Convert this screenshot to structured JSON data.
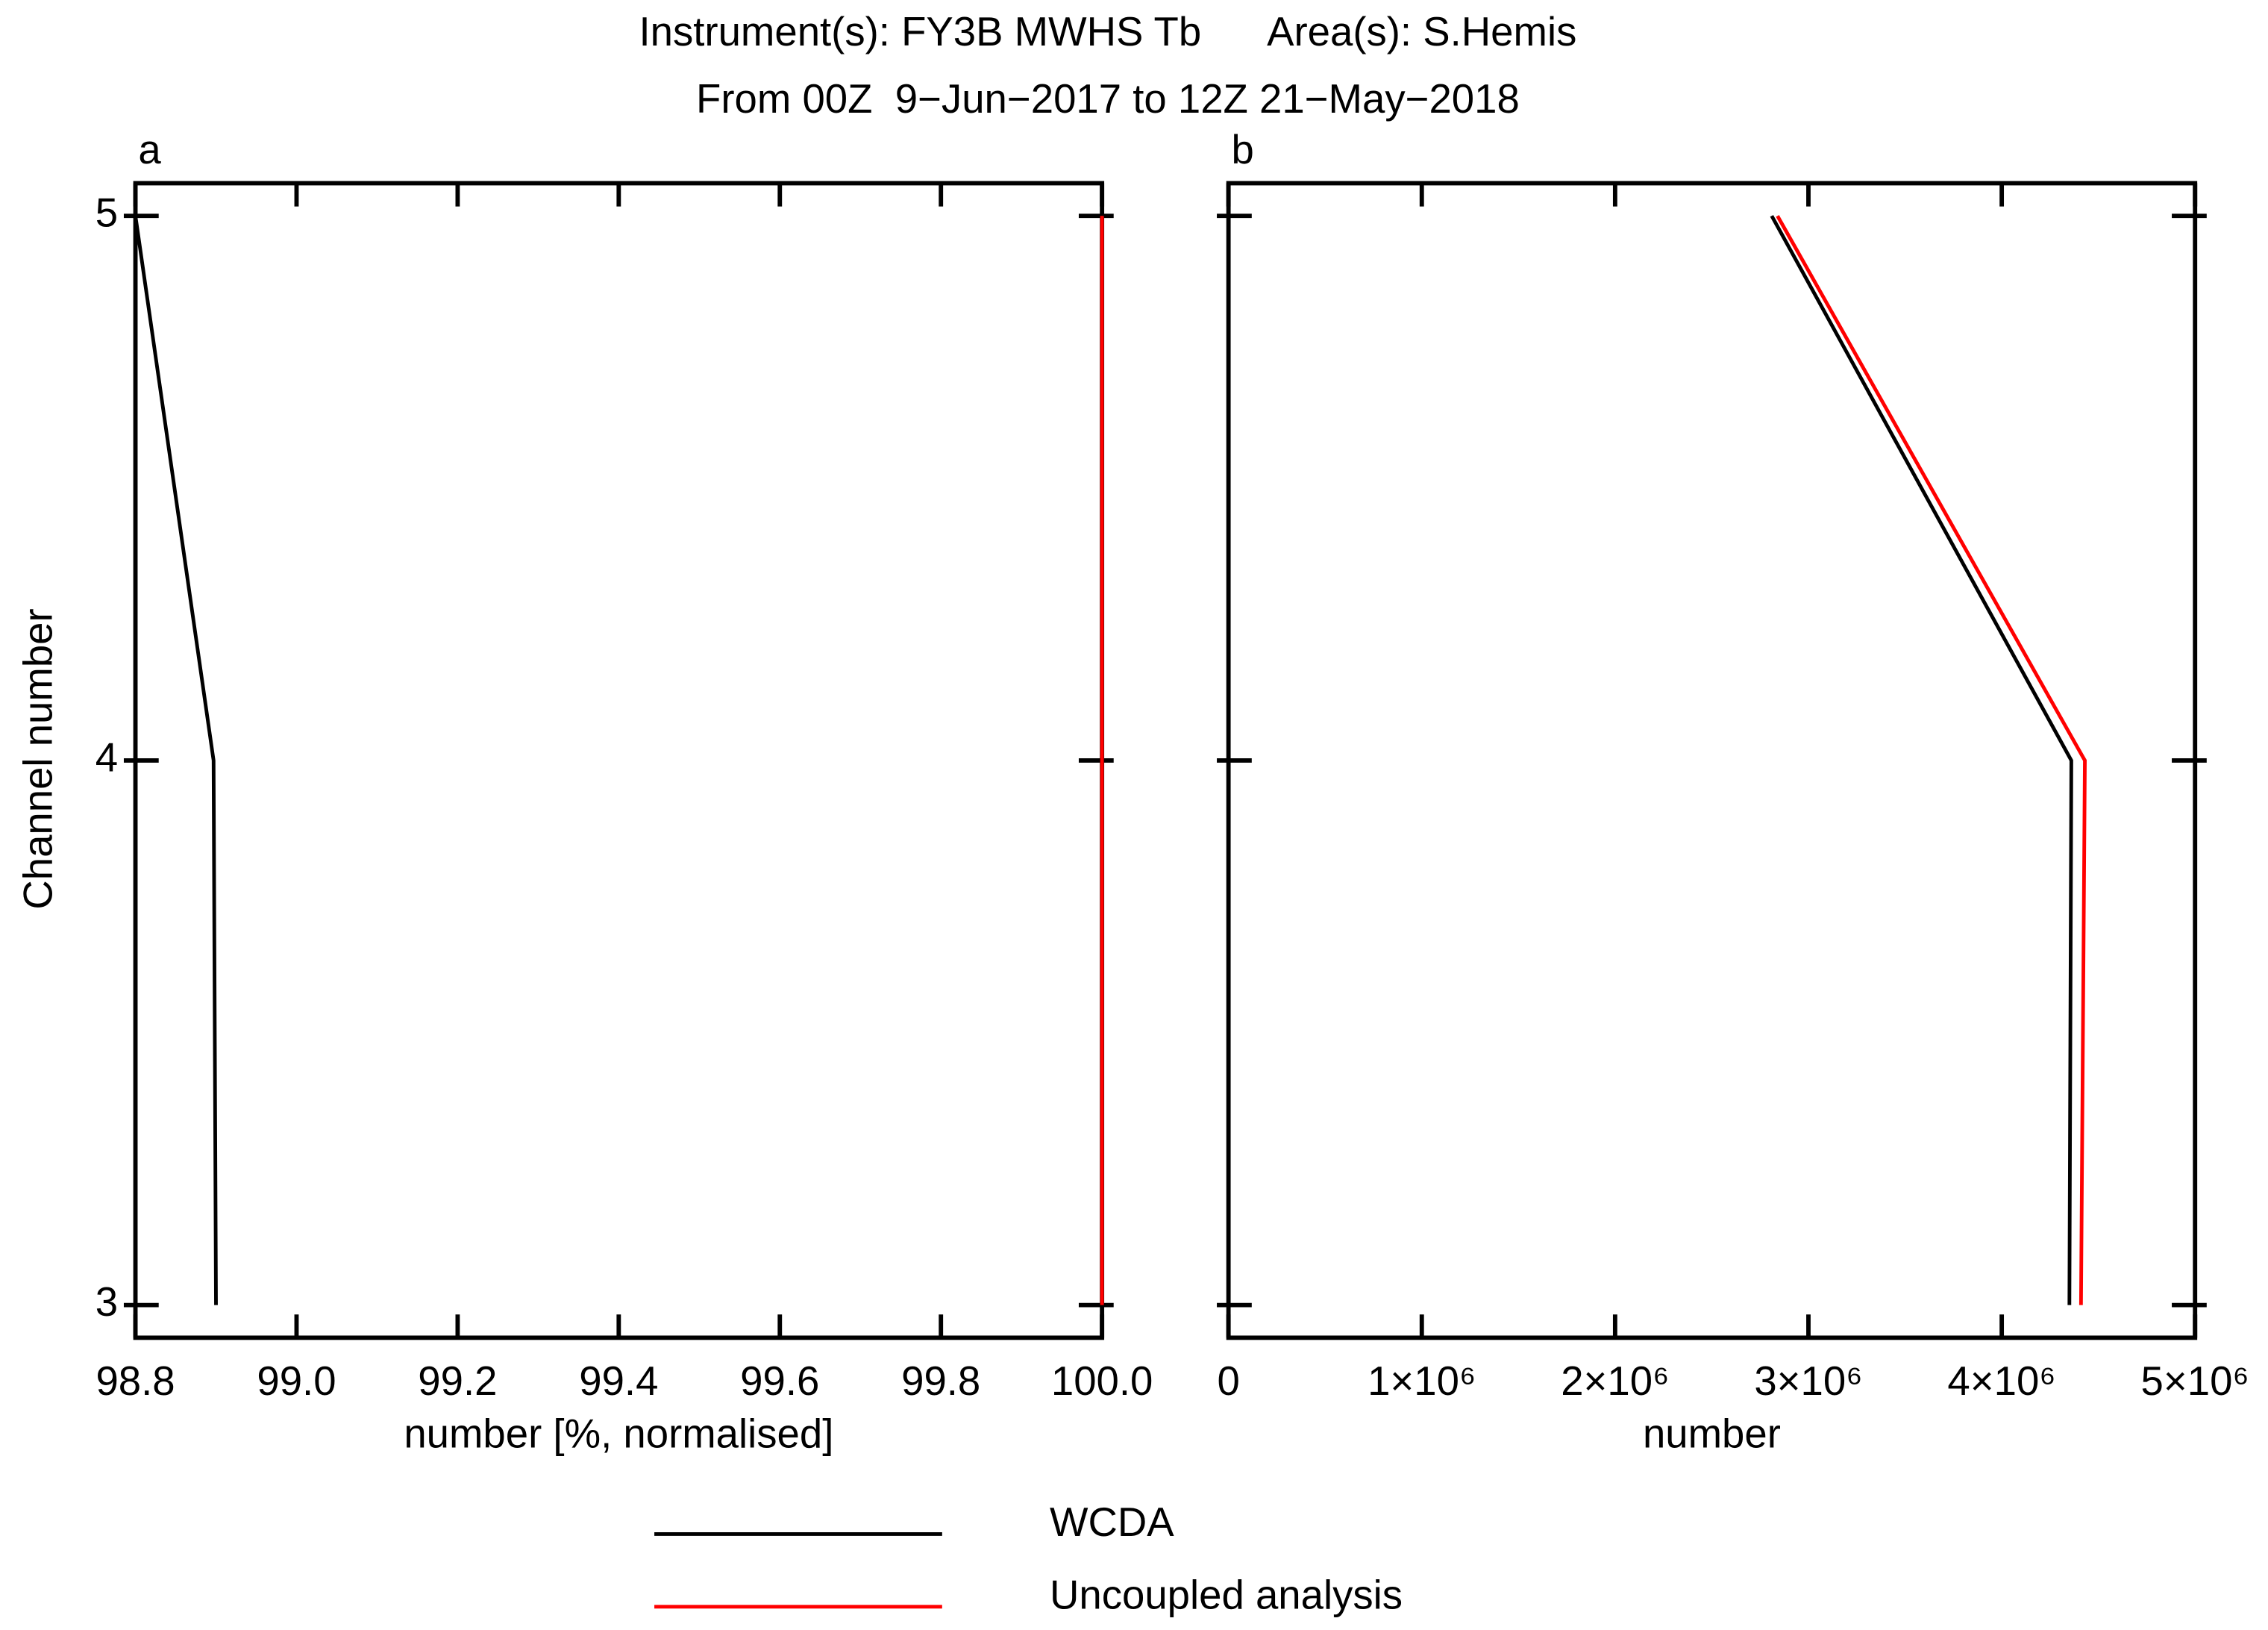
{
  "title": "Instrument(s): FY3B MWHS Tb      Area(s): S.Hemis",
  "subtitle": "From 00Z  9−Jun−2017 to 12Z 21−May−2018",
  "chart_data": [
    {
      "type": "line",
      "panel": "a",
      "xlabel": "number [%, normalised]",
      "ylabel": "Channel number",
      "y": [
        3,
        4,
        5
      ],
      "xlim": [
        98.8,
        100
      ],
      "xticks": [
        98.8,
        {
          "value": 99,
          "label": "99.0"
        },
        99.2,
        99.4,
        99.6,
        99.8,
        {
          "value": 100,
          "label": "100.0"
        }
      ],
      "ylim": [
        2.94,
        5.06
      ],
      "yticks": [
        3,
        4,
        5
      ],
      "series": [
        {
          "name": "WCDA",
          "color": "#000000",
          "values": [
            98.9,
            98.897,
            98.8
          ]
        },
        {
          "name": "Uncoupled analysis",
          "color": "#ff0000",
          "values": [
            100,
            100,
            100
          ]
        }
      ]
    },
    {
      "type": "line",
      "panel": "b",
      "xlabel": "number",
      "y": [
        3,
        4,
        5
      ],
      "xlim": [
        0,
        5000000
      ],
      "xticks": [
        0,
        {
          "value": 1000000,
          "label": "1×10⁶"
        },
        {
          "value": 2000000,
          "label": "2×10⁶"
        },
        {
          "value": 3000000,
          "label": "3×10⁶"
        },
        {
          "value": 4000000,
          "label": "4×10⁶"
        },
        {
          "value": 5000000,
          "label": "5×10⁶"
        }
      ],
      "ylim": [
        2.94,
        5.06
      ],
      "yticks": [
        3,
        4,
        5
      ],
      "series": [
        {
          "name": "WCDA",
          "color": "#000000",
          "values": [
            4350000,
            4360000,
            2810000
          ]
        },
        {
          "name": "Uncoupled analysis",
          "color": "#ff0000",
          "values": [
            4410000,
            4430000,
            2840000
          ]
        }
      ]
    }
  ]
}
